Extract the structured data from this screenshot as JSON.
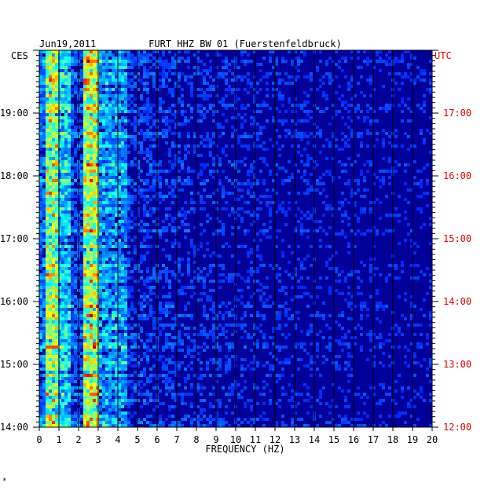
{
  "chart_data": {
    "type": "heatmap",
    "title": "FURT HHZ BW 01 (Fuerstenfeldbruck)",
    "date": "Jun19,2011",
    "left_timezone": "CES",
    "right_timezone": "UTC",
    "xlabel": "FREQUENCY (HZ)",
    "xlim": [
      0,
      20
    ],
    "x_ticks": [
      "0",
      "1",
      "2",
      "3",
      "4",
      "5",
      "6",
      "7",
      "8",
      "9",
      "10",
      "11",
      "12",
      "13",
      "14",
      "15",
      "16",
      "17",
      "18",
      "19",
      "20"
    ],
    "left_time_labels": [
      "19:00",
      "18:00",
      "17:00",
      "16:00",
      "15:00",
      "14:00"
    ],
    "right_time_labels": [
      "17:00",
      "16:00",
      "15:00",
      "14:00",
      "13:00",
      "12:00"
    ],
    "time_hours_local": [
      19,
      18,
      17,
      16,
      15,
      14
    ],
    "time_range_local_hours": [
      14,
      20
    ],
    "grid": true,
    "colors": {
      "background": "#000099",
      "utc_label": "#dd0000",
      "text": "#000000"
    },
    "dominant_bands_hz": [
      {
        "from": 0.3,
        "to": 0.9,
        "level": 0.85
      },
      {
        "from": 1.0,
        "to": 1.6,
        "level": 0.55
      },
      {
        "from": 2.3,
        "to": 3.0,
        "level": 0.9
      },
      {
        "from": 3.0,
        "to": 4.5,
        "level": 0.45
      }
    ],
    "footer_mark": "*"
  }
}
